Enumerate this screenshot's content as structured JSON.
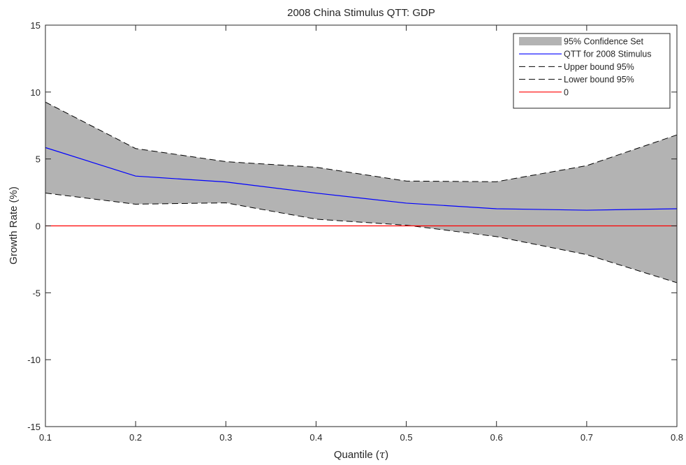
{
  "chart_data": {
    "type": "line",
    "title": "2008 China Stimulus QTT: GDP",
    "xlabel": "Quantile",
    "xlabel_symbol": "τ",
    "ylabel": "Growth Rate (%)",
    "xlim": [
      0.1,
      0.8
    ],
    "ylim": [
      -15,
      15
    ],
    "x_ticks": [
      "0.1",
      "0.2",
      "0.3",
      "0.4",
      "0.5",
      "0.6",
      "0.7",
      "0.8"
    ],
    "y_ticks": [
      "-15",
      "-10",
      "-5",
      "0",
      "5",
      "10",
      "15"
    ],
    "x": [
      0.1,
      0.2,
      0.3,
      0.4,
      0.5,
      0.6,
      0.7,
      0.8
    ],
    "grid": false,
    "legend_position": "top-right",
    "series": [
      {
        "name": "95% Confidence Set",
        "kind": "band",
        "color": "#b3b3b3"
      },
      {
        "name": "QTT for 2008 Stimulus",
        "kind": "line",
        "color": "#0000ff",
        "values": [
          5.85,
          3.72,
          3.28,
          2.45,
          1.7,
          1.28,
          1.17,
          1.28
        ]
      },
      {
        "name": "Upper bound 95%",
        "kind": "dashed",
        "color": "#000000",
        "values": [
          9.25,
          5.78,
          4.8,
          4.38,
          3.35,
          3.3,
          4.5,
          6.8
        ]
      },
      {
        "name": "Lower bound 95%",
        "kind": "dashed",
        "color": "#000000",
        "values": [
          2.45,
          1.62,
          1.72,
          0.5,
          0.05,
          -0.8,
          -2.15,
          -4.25
        ]
      },
      {
        "name": "0",
        "kind": "line",
        "color": "#ff0000",
        "values": [
          0,
          0,
          0,
          0,
          0,
          0,
          0,
          0
        ]
      }
    ]
  }
}
